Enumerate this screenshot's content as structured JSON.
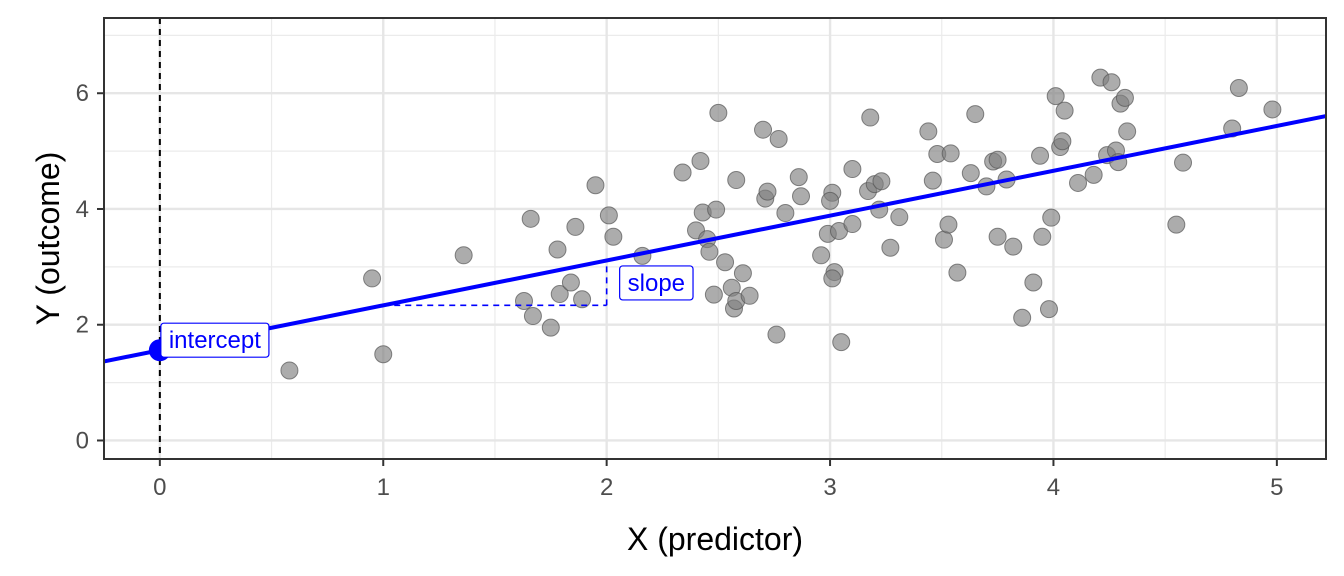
{
  "chart_data": {
    "type": "scatter",
    "title": "",
    "xlabel": "X (predictor)",
    "ylabel": "Y (outcome)",
    "xlim": [
      -0.25,
      5.22
    ],
    "ylim": [
      -0.32,
      7.3
    ],
    "x_ticks": [
      0,
      1,
      2,
      3,
      4,
      5
    ],
    "y_ticks": [
      0,
      2,
      4,
      6
    ],
    "x_tick_labels": [
      "0",
      "1",
      "2",
      "3",
      "4",
      "5"
    ],
    "y_tick_labels": [
      "0",
      "2",
      "4",
      "6"
    ],
    "grid": true,
    "theme": "bw",
    "point_color": "#808080",
    "accent_color": "#0000ff",
    "reference_line": {
      "x": 0,
      "style": "dashed"
    },
    "regression_line": {
      "intercept": 1.56,
      "slope": 0.775
    },
    "annotations": {
      "intercept": {
        "label": "intercept",
        "x": 0,
        "y": 1.56
      },
      "slope": {
        "label": "slope",
        "x_from": 1,
        "x_to": 2
      }
    },
    "points": [
      {
        "x": 0.58,
        "y": 1.21
      },
      {
        "x": 0.95,
        "y": 2.8
      },
      {
        "x": 1.0,
        "y": 1.49
      },
      {
        "x": 1.36,
        "y": 3.2
      },
      {
        "x": 1.63,
        "y": 2.41
      },
      {
        "x": 1.66,
        "y": 3.83
      },
      {
        "x": 1.67,
        "y": 2.15
      },
      {
        "x": 1.75,
        "y": 1.95
      },
      {
        "x": 1.78,
        "y": 3.3
      },
      {
        "x": 1.79,
        "y": 2.53
      },
      {
        "x": 1.84,
        "y": 2.73
      },
      {
        "x": 1.86,
        "y": 3.69
      },
      {
        "x": 1.89,
        "y": 2.44
      },
      {
        "x": 1.95,
        "y": 4.41
      },
      {
        "x": 2.01,
        "y": 3.89
      },
      {
        "x": 2.03,
        "y": 3.52
      },
      {
        "x": 2.16,
        "y": 3.19
      },
      {
        "x": 2.34,
        "y": 4.63
      },
      {
        "x": 2.4,
        "y": 3.63
      },
      {
        "x": 2.42,
        "y": 4.83
      },
      {
        "x": 2.43,
        "y": 3.94
      },
      {
        "x": 2.45,
        "y": 3.48
      },
      {
        "x": 2.46,
        "y": 3.26
      },
      {
        "x": 2.48,
        "y": 2.52
      },
      {
        "x": 2.49,
        "y": 3.99
      },
      {
        "x": 2.5,
        "y": 5.66
      },
      {
        "x": 2.53,
        "y": 3.08
      },
      {
        "x": 2.56,
        "y": 2.64
      },
      {
        "x": 2.57,
        "y": 2.28
      },
      {
        "x": 2.58,
        "y": 4.5
      },
      {
        "x": 2.58,
        "y": 2.41
      },
      {
        "x": 2.61,
        "y": 2.89
      },
      {
        "x": 2.64,
        "y": 2.5
      },
      {
        "x": 2.7,
        "y": 5.37
      },
      {
        "x": 2.71,
        "y": 4.18
      },
      {
        "x": 2.72,
        "y": 4.3
      },
      {
        "x": 2.76,
        "y": 1.83
      },
      {
        "x": 2.77,
        "y": 5.21
      },
      {
        "x": 2.8,
        "y": 3.93
      },
      {
        "x": 2.86,
        "y": 4.55
      },
      {
        "x": 2.87,
        "y": 4.22
      },
      {
        "x": 2.96,
        "y": 3.2
      },
      {
        "x": 2.99,
        "y": 3.57
      },
      {
        "x": 3.01,
        "y": 4.28
      },
      {
        "x": 3.0,
        "y": 4.14
      },
      {
        "x": 3.02,
        "y": 2.91
      },
      {
        "x": 3.01,
        "y": 2.8
      },
      {
        "x": 3.04,
        "y": 3.62
      },
      {
        "x": 3.05,
        "y": 1.7
      },
      {
        "x": 3.1,
        "y": 4.69
      },
      {
        "x": 3.1,
        "y": 3.74
      },
      {
        "x": 3.17,
        "y": 4.31
      },
      {
        "x": 3.18,
        "y": 5.58
      },
      {
        "x": 3.2,
        "y": 4.43
      },
      {
        "x": 3.22,
        "y": 3.99
      },
      {
        "x": 3.23,
        "y": 4.48
      },
      {
        "x": 3.27,
        "y": 3.33
      },
      {
        "x": 3.31,
        "y": 3.86
      },
      {
        "x": 3.44,
        "y": 5.34
      },
      {
        "x": 3.46,
        "y": 4.49
      },
      {
        "x": 3.48,
        "y": 4.95
      },
      {
        "x": 3.51,
        "y": 3.47
      },
      {
        "x": 3.53,
        "y": 3.73
      },
      {
        "x": 3.54,
        "y": 4.96
      },
      {
        "x": 3.57,
        "y": 2.9
      },
      {
        "x": 3.63,
        "y": 4.62
      },
      {
        "x": 3.65,
        "y": 5.64
      },
      {
        "x": 3.7,
        "y": 4.39
      },
      {
        "x": 3.73,
        "y": 4.82
      },
      {
        "x": 3.75,
        "y": 3.52
      },
      {
        "x": 3.75,
        "y": 4.85
      },
      {
        "x": 3.79,
        "y": 4.51
      },
      {
        "x": 3.82,
        "y": 3.35
      },
      {
        "x": 3.86,
        "y": 2.12
      },
      {
        "x": 3.91,
        "y": 2.73
      },
      {
        "x": 3.94,
        "y": 4.92
      },
      {
        "x": 3.95,
        "y": 3.52
      },
      {
        "x": 3.98,
        "y": 2.27
      },
      {
        "x": 3.99,
        "y": 3.85
      },
      {
        "x": 4.01,
        "y": 5.95
      },
      {
        "x": 4.03,
        "y": 5.07
      },
      {
        "x": 4.04,
        "y": 5.17
      },
      {
        "x": 4.05,
        "y": 5.7
      },
      {
        "x": 4.11,
        "y": 4.45
      },
      {
        "x": 4.18,
        "y": 4.59
      },
      {
        "x": 4.21,
        "y": 6.27
      },
      {
        "x": 4.24,
        "y": 4.93
      },
      {
        "x": 4.26,
        "y": 6.19
      },
      {
        "x": 4.28,
        "y": 5.01
      },
      {
        "x": 4.29,
        "y": 4.81
      },
      {
        "x": 4.3,
        "y": 5.82
      },
      {
        "x": 4.32,
        "y": 5.92
      },
      {
        "x": 4.33,
        "y": 5.34
      },
      {
        "x": 4.55,
        "y": 3.73
      },
      {
        "x": 4.58,
        "y": 4.8
      },
      {
        "x": 4.8,
        "y": 5.39
      },
      {
        "x": 4.83,
        "y": 6.09
      },
      {
        "x": 4.98,
        "y": 5.72
      }
    ]
  }
}
